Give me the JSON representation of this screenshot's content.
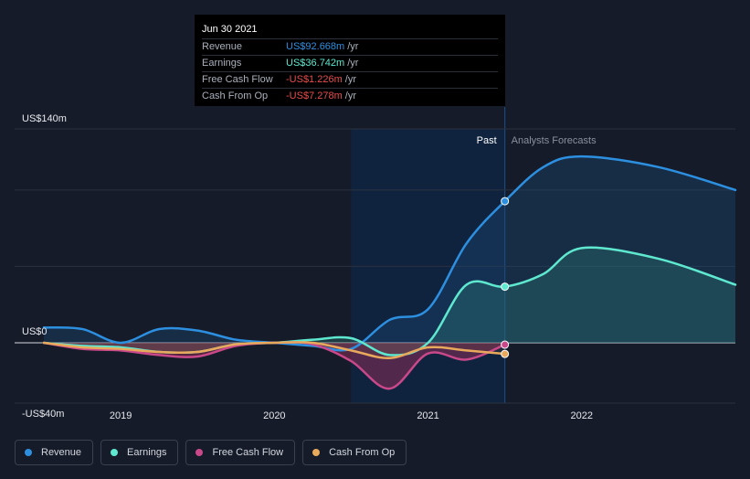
{
  "tooltip": {
    "date": "Jun 30 2021",
    "rows": [
      {
        "label": "Revenue",
        "value": "US$92.668m",
        "unit": "/yr",
        "color": "#2d8fe0"
      },
      {
        "label": "Earnings",
        "value": "US$36.742m",
        "unit": "/yr",
        "color": "#5ee8cf"
      },
      {
        "label": "Free Cash Flow",
        "value": "-US$1.226m",
        "unit": "/yr",
        "color": "#e84c4c"
      },
      {
        "label": "Cash From Op",
        "value": "-US$7.278m",
        "unit": "/yr",
        "color": "#e84c4c"
      }
    ]
  },
  "legend": [
    {
      "label": "Revenue",
      "color": "#2d8fe0"
    },
    {
      "label": "Earnings",
      "color": "#5ee8cf"
    },
    {
      "label": "Free Cash Flow",
      "color": "#c9488a"
    },
    {
      "label": "Cash From Op",
      "color": "#e8a95c"
    }
  ],
  "chart_data": {
    "type": "line",
    "ylim": [
      -40,
      140
    ],
    "y_tick_labels": [
      "US$140m",
      "US$0",
      "-US$40m"
    ],
    "y_tick_values": [
      140,
      0,
      -40
    ],
    "x_ticks": [
      2019,
      2020,
      2021,
      2022
    ],
    "xlim": [
      2018.5,
      2023.0
    ],
    "past_label": "Past",
    "forecast_label": "Analysts Forecasts",
    "past_shade_start": 2020.5,
    "forecast_start": 2021.5,
    "series": [
      {
        "name": "Revenue",
        "color": "#2d8fe0",
        "x": [
          2018.5,
          2018.75,
          2019.0,
          2019.25,
          2019.5,
          2019.75,
          2020.0,
          2020.25,
          2020.5,
          2020.75,
          2021.0,
          2021.25,
          2021.5,
          2021.75,
          2022.0,
          2022.5,
          2023.0
        ],
        "y": [
          10,
          9,
          0,
          9,
          8,
          2,
          0,
          -2,
          -4,
          15,
          22,
          65,
          92.668,
          115,
          122,
          115,
          100
        ]
      },
      {
        "name": "Earnings",
        "color": "#5ee8cf",
        "x": [
          2018.5,
          2018.75,
          2019.0,
          2019.25,
          2019.5,
          2019.75,
          2020.0,
          2020.25,
          2020.5,
          2020.75,
          2021.0,
          2021.25,
          2021.5,
          2021.75,
          2022.0,
          2022.5,
          2023.0
        ],
        "y": [
          0,
          -2,
          -3,
          -6,
          -6,
          -1,
          0,
          2,
          3,
          -8,
          0,
          38,
          36.742,
          45,
          62,
          55,
          38
        ]
      },
      {
        "name": "Free Cash Flow",
        "color": "#c9488a",
        "x": [
          2018.5,
          2018.75,
          2019.0,
          2019.25,
          2019.5,
          2019.75,
          2020.0,
          2020.25,
          2020.5,
          2020.75,
          2021.0,
          2021.25,
          2021.5
        ],
        "y": [
          0,
          -4,
          -5,
          -8,
          -9,
          -2,
          0,
          -1,
          -12,
          -30,
          -7,
          -11,
          -1.226
        ]
      },
      {
        "name": "Cash From Op",
        "color": "#e8a95c",
        "x": [
          2018.5,
          2018.75,
          2019.0,
          2019.25,
          2019.5,
          2019.75,
          2020.0,
          2020.25,
          2020.5,
          2020.75,
          2021.0,
          2021.25,
          2021.5
        ],
        "y": [
          0,
          -3,
          -4,
          -6,
          -6,
          -1,
          0,
          0,
          -5,
          -10,
          -3,
          -5,
          -7.278
        ]
      }
    ]
  }
}
